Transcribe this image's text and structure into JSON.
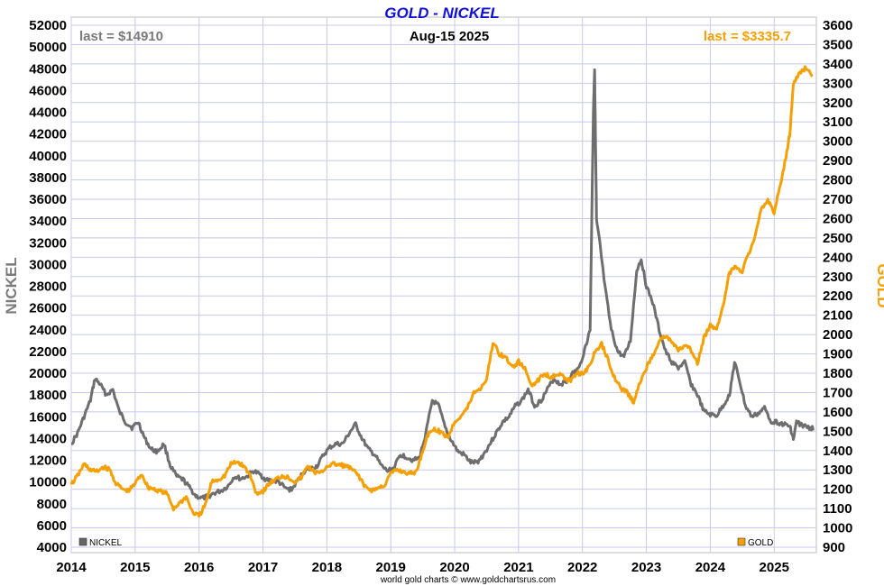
{
  "chart_data": {
    "type": "line",
    "title": "GOLD - NICKEL",
    "date_label": "Aug-15  2025",
    "credit": "world gold charts © www.goldchartsrus.com",
    "left_axis": {
      "label": "NICKEL",
      "min": 4000,
      "max": 52000,
      "ticks": [
        4000,
        6000,
        8000,
        10000,
        12000,
        14000,
        16000,
        18000,
        20000,
        22000,
        24000,
        26000,
        28000,
        30000,
        32000,
        34000,
        36000,
        38000,
        40000,
        42000,
        44000,
        46000,
        48000,
        50000,
        52000
      ],
      "color": "#7a7a7a"
    },
    "right_axis": {
      "label": "GOLD",
      "min": 900,
      "max": 3600,
      "ticks": [
        900,
        1000,
        1100,
        1200,
        1300,
        1400,
        1500,
        1600,
        1700,
        1800,
        1900,
        2000,
        2100,
        2200,
        2300,
        2400,
        2500,
        2600,
        2700,
        2800,
        2900,
        3000,
        3100,
        3200,
        3300,
        3400,
        3500,
        3600
      ],
      "color": "#f5a000"
    },
    "x_axis": {
      "min": 2014.0,
      "max": 2025.66,
      "tick_labels": [
        "2014",
        "2015",
        "2016",
        "2017",
        "2018",
        "2019",
        "2020",
        "2021",
        "2022",
        "2023",
        "2024",
        "2025"
      ]
    },
    "grid": true,
    "legend": [
      {
        "name": "NICKEL",
        "color": "#666666",
        "placement": "bottom-left"
      },
      {
        "name": "GOLD",
        "color": "#f5a000",
        "placement": "bottom-right"
      }
    ],
    "series": [
      {
        "name": "NICKEL",
        "axis": "left",
        "color": "#6e6e6e",
        "last_label": "last = $14910",
        "x": [
          2014.0,
          2014.1,
          2014.2,
          2014.3,
          2014.37,
          2014.45,
          2014.55,
          2014.65,
          2014.75,
          2014.85,
          2014.95,
          2015.05,
          2015.15,
          2015.25,
          2015.35,
          2015.45,
          2015.55,
          2015.65,
          2015.75,
          2015.85,
          2015.95,
          2016.05,
          2016.15,
          2016.25,
          2016.35,
          2016.45,
          2016.55,
          2016.65,
          2016.75,
          2016.85,
          2016.95,
          2017.05,
          2017.15,
          2017.25,
          2017.35,
          2017.45,
          2017.55,
          2017.65,
          2017.75,
          2017.85,
          2017.95,
          2018.05,
          2018.15,
          2018.25,
          2018.35,
          2018.45,
          2018.55,
          2018.65,
          2018.75,
          2018.85,
          2018.95,
          2019.05,
          2019.15,
          2019.25,
          2019.35,
          2019.45,
          2019.55,
          2019.65,
          2019.75,
          2019.85,
          2019.95,
          2020.05,
          2020.15,
          2020.25,
          2020.35,
          2020.45,
          2020.55,
          2020.65,
          2020.75,
          2020.85,
          2020.95,
          2021.05,
          2021.15,
          2021.25,
          2021.35,
          2021.45,
          2021.55,
          2021.65,
          2021.75,
          2021.85,
          2021.95,
          2022.05,
          2022.12,
          2022.17,
          2022.19,
          2022.22,
          2022.27,
          2022.35,
          2022.45,
          2022.55,
          2022.65,
          2022.75,
          2022.85,
          2022.92,
          2023.0,
          2023.1,
          2023.2,
          2023.3,
          2023.4,
          2023.5,
          2023.6,
          2023.7,
          2023.8,
          2023.9,
          2024.0,
          2024.1,
          2024.2,
          2024.3,
          2024.38,
          2024.45,
          2024.55,
          2024.65,
          2024.75,
          2024.85,
          2024.95,
          2025.05,
          2025.15,
          2025.25,
          2025.3,
          2025.35,
          2025.45,
          2025.55,
          2025.62
        ],
        "values": [
          13500,
          14500,
          16000,
          17500,
          19500,
          19000,
          18000,
          18500,
          16500,
          15500,
          15000,
          15500,
          14000,
          13000,
          12800,
          13500,
          11500,
          10500,
          10200,
          9500,
          8700,
          8500,
          8700,
          9000,
          9200,
          9600,
          10500,
          10300,
          10500,
          11000,
          10700,
          10200,
          10100,
          10000,
          9400,
          9300,
          10200,
          11000,
          11200,
          11500,
          12500,
          13200,
          13500,
          13500,
          14500,
          15300,
          14000,
          13000,
          12500,
          11500,
          11000,
          11300,
          12500,
          12300,
          12000,
          12200,
          14500,
          17500,
          17000,
          15000,
          13800,
          12800,
          12500,
          11800,
          11800,
          12500,
          13500,
          14500,
          15500,
          16000,
          17000,
          17500,
          18500,
          17000,
          17500,
          18500,
          19500,
          19000,
          19200,
          20000,
          20500,
          22500,
          24000,
          44000,
          48000,
          34000,
          32000,
          28000,
          24000,
          22000,
          21500,
          23000,
          29500,
          30500,
          28000,
          26500,
          24000,
          22000,
          21000,
          20500,
          21000,
          19000,
          18000,
          16500,
          16200,
          16100,
          17000,
          18000,
          21000,
          19500,
          17000,
          16000,
          16300,
          16800,
          15600,
          15500,
          15300,
          15100,
          13900,
          15500,
          15200,
          15000,
          14910
        ]
      },
      {
        "name": "GOLD",
        "axis": "right",
        "color": "#f5a000",
        "last_label": "last = $3335.7",
        "x": [
          2014.0,
          2014.1,
          2014.2,
          2014.3,
          2014.4,
          2014.5,
          2014.6,
          2014.7,
          2014.8,
          2014.9,
          2015.0,
          2015.1,
          2015.2,
          2015.3,
          2015.4,
          2015.5,
          2015.6,
          2015.7,
          2015.8,
          2015.9,
          2016.0,
          2016.1,
          2016.2,
          2016.3,
          2016.4,
          2016.5,
          2016.6,
          2016.7,
          2016.8,
          2016.9,
          2017.0,
          2017.1,
          2017.2,
          2017.3,
          2017.4,
          2017.5,
          2017.6,
          2017.7,
          2017.8,
          2017.9,
          2018.0,
          2018.1,
          2018.2,
          2018.3,
          2018.4,
          2018.5,
          2018.6,
          2018.7,
          2018.8,
          2018.9,
          2019.0,
          2019.1,
          2019.2,
          2019.3,
          2019.4,
          2019.5,
          2019.6,
          2019.7,
          2019.8,
          2019.9,
          2020.0,
          2020.1,
          2020.2,
          2020.3,
          2020.4,
          2020.5,
          2020.6,
          2020.7,
          2020.8,
          2020.9,
          2021.0,
          2021.1,
          2021.2,
          2021.3,
          2021.4,
          2021.5,
          2021.6,
          2021.7,
          2021.8,
          2021.9,
          2022.0,
          2022.1,
          2022.2,
          2022.3,
          2022.4,
          2022.5,
          2022.6,
          2022.7,
          2022.8,
          2022.9,
          2023.0,
          2023.1,
          2023.2,
          2023.3,
          2023.4,
          2023.5,
          2023.6,
          2023.7,
          2023.8,
          2023.9,
          2024.0,
          2024.1,
          2024.2,
          2024.3,
          2024.4,
          2024.5,
          2024.6,
          2024.7,
          2024.8,
          2024.9,
          2025.0,
          2025.1,
          2025.2,
          2025.25,
          2025.3,
          2025.4,
          2025.5,
          2025.6
        ],
        "values": [
          1225,
          1270,
          1330,
          1300,
          1290,
          1315,
          1300,
          1230,
          1200,
          1190,
          1230,
          1280,
          1210,
          1200,
          1190,
          1175,
          1100,
          1130,
          1160,
          1080,
          1060,
          1120,
          1240,
          1250,
          1270,
          1330,
          1340,
          1320,
          1270,
          1180,
          1190,
          1230,
          1250,
          1270,
          1260,
          1240,
          1260,
          1320,
          1290,
          1280,
          1320,
          1330,
          1325,
          1320,
          1300,
          1270,
          1210,
          1195,
          1205,
          1220,
          1280,
          1300,
          1290,
          1280,
          1290,
          1400,
          1500,
          1510,
          1490,
          1470,
          1550,
          1580,
          1620,
          1700,
          1720,
          1770,
          1960,
          1900,
          1880,
          1830,
          1860,
          1820,
          1740,
          1760,
          1800,
          1780,
          1800,
          1780,
          1760,
          1800,
          1800,
          1830,
          1910,
          1950,
          1870,
          1780,
          1720,
          1700,
          1650,
          1750,
          1830,
          1890,
          1970,
          1990,
          1960,
          1920,
          1940,
          1920,
          1850,
          1980,
          2050,
          2030,
          2150,
          2320,
          2350,
          2330,
          2420,
          2500,
          2650,
          2700,
          2630,
          2780,
          2950,
          3050,
          3300,
          3350,
          3380,
          3335.7
        ]
      }
    ]
  }
}
